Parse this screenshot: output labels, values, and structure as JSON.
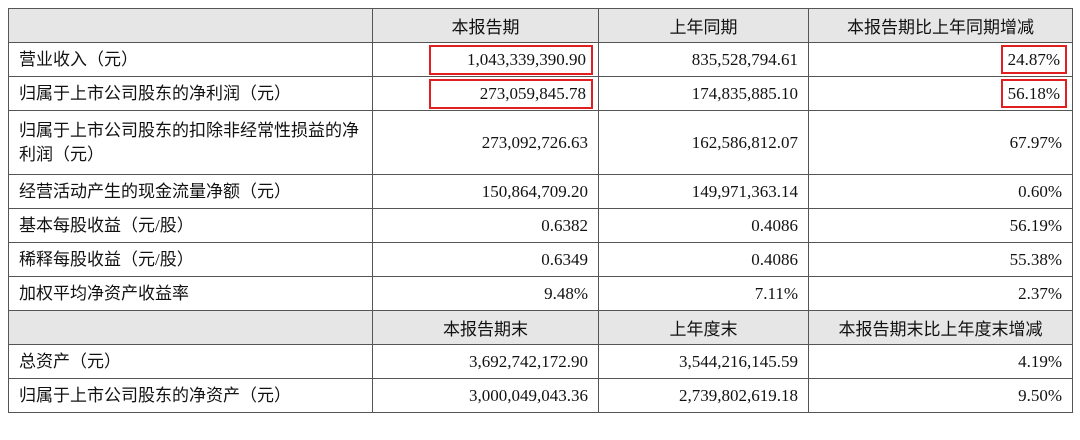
{
  "table": {
    "header": [
      "",
      "本报告期",
      "上年同期",
      "本报告期比上年同期增减"
    ],
    "rows": [
      [
        "营业收入（元）",
        "1,043,339,390.90",
        "835,528,794.61",
        "24.87%"
      ],
      [
        "归属于上市公司股东的净利润（元）",
        "273,059,845.78",
        "174,835,885.10",
        "56.18%"
      ],
      [
        "归属于上市公司股东的扣除非经常性损益的净利润（元）",
        "273,092,726.63",
        "162,586,812.07",
        "67.97%"
      ],
      [
        "经营活动产生的现金流量净额（元）",
        "150,864,709.20",
        "149,971,363.14",
        "0.60%"
      ],
      [
        "基本每股收益（元/股）",
        "0.6382",
        "0.4086",
        "56.19%"
      ],
      [
        "稀释每股收益（元/股）",
        "0.6349",
        "0.4086",
        "55.38%"
      ],
      [
        "加权平均净资产收益率",
        "9.48%",
        "7.11%",
        "2.37%"
      ]
    ],
    "header2": [
      "",
      "本报告期末",
      "上年度末",
      "本报告期末比上年度末增减"
    ],
    "rows2": [
      [
        "总资产（元）",
        "3,692,742,172.90",
        "3,544,216,145.59",
        "4.19%"
      ],
      [
        "归属于上市公司股东的净资产（元）",
        "3,000,049,043.36",
        "2,739,802,619.18",
        "9.50%"
      ]
    ]
  }
}
